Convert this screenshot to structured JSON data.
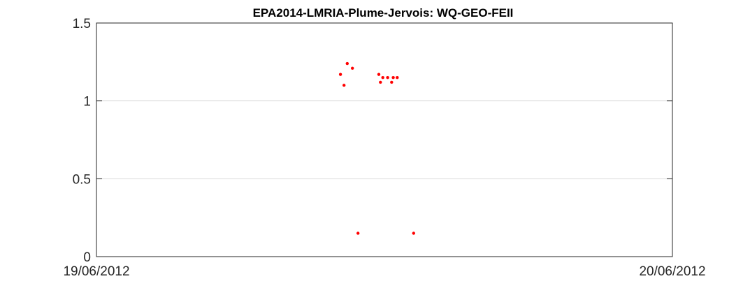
{
  "chart_data": {
    "type": "scatter",
    "title": "EPA2014-LMRIA-Plume-Jervois: WQ-GEO-FEII",
    "xlabel": "",
    "ylabel": "",
    "xlim": [
      "19/06/2012 00:00",
      "20/06/2012 00:00"
    ],
    "ylim": [
      0,
      1.5
    ],
    "x_tick_labels": [
      "19/06/2012",
      "20/06/2012"
    ],
    "y_ticks": [
      0,
      0.5,
      1,
      1.5
    ],
    "y_tick_labels": [
      "0",
      "0.5",
      "1",
      "1.5"
    ],
    "grid": "horizontal",
    "legend": "none",
    "marker_color": "#ff0000",
    "series": [
      {
        "x": [
          "19/06/2012 10:10",
          "19/06/2012 10:19",
          "19/06/2012 10:27",
          "19/06/2012 10:40",
          "19/06/2012 10:54",
          "19/06/2012 11:46",
          "19/06/2012 11:50",
          "19/06/2012 11:56",
          "19/06/2012 12:08",
          "19/06/2012 12:18",
          "19/06/2012 12:22",
          "19/06/2012 12:32",
          "19/06/2012 13:13"
        ],
        "y": [
          1.17,
          1.1,
          1.24,
          1.21,
          0.15,
          1.17,
          1.12,
          1.15,
          1.15,
          1.12,
          1.15,
          1.15,
          0.15
        ]
      }
    ]
  }
}
